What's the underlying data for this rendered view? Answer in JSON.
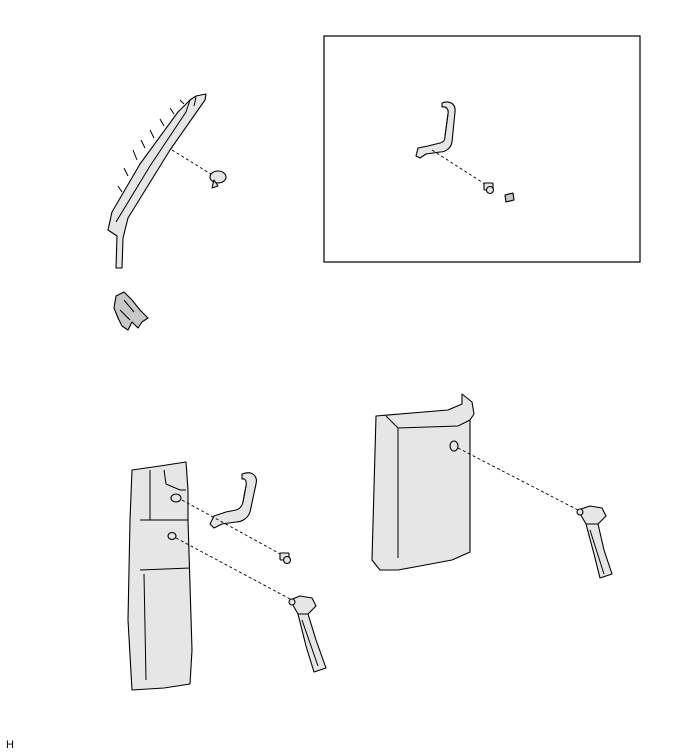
{
  "figure_code": "H"
}
